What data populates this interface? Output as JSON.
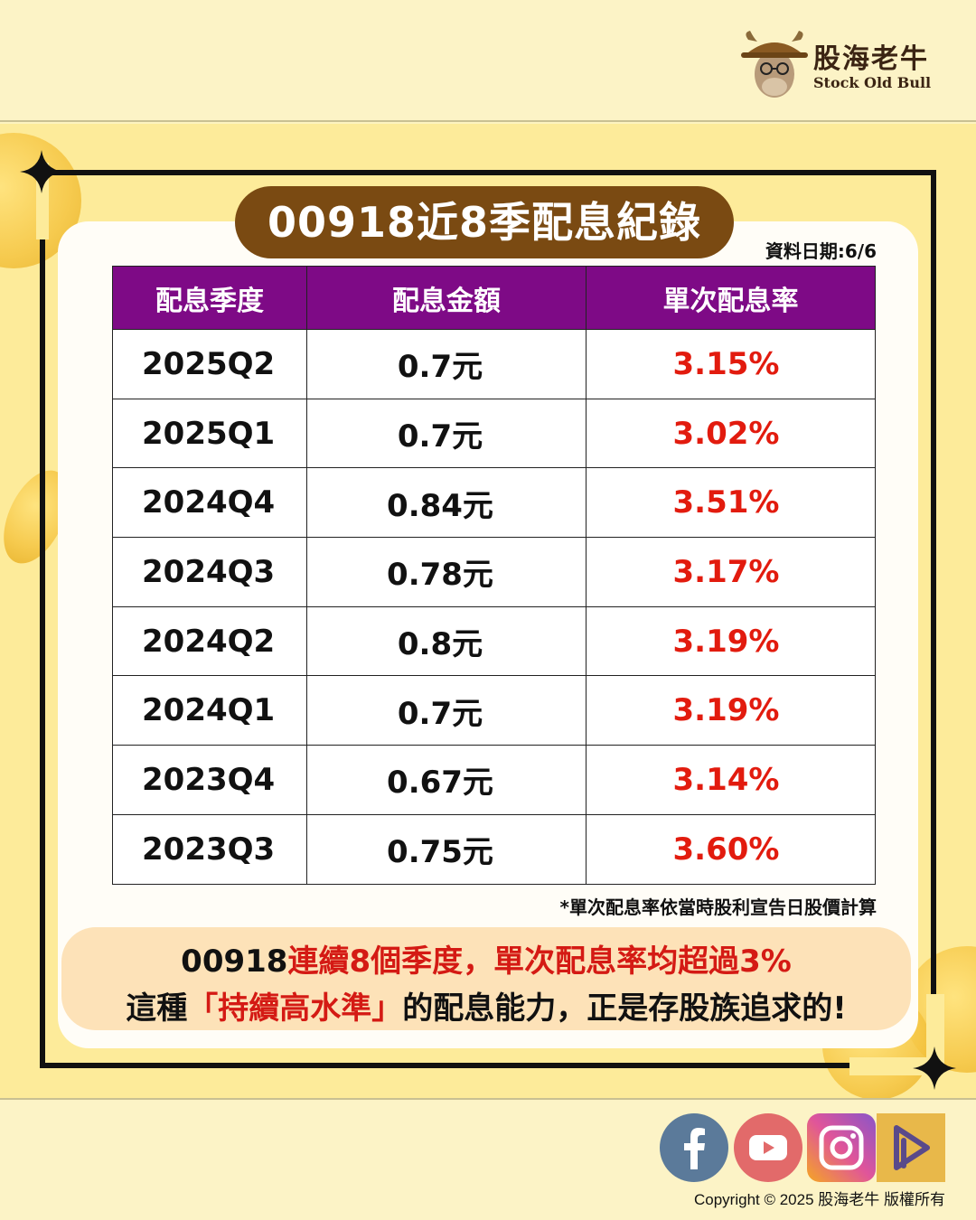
{
  "logo": {
    "name": "股海老牛",
    "subtitle": "Stock Old Bull"
  },
  "title": "00918近8季配息紀錄",
  "date_label": "資料日期:6/6",
  "table": {
    "headers": [
      "配息季度",
      "配息金額",
      "單次配息率"
    ],
    "rows": [
      {
        "quarter": "2025Q2",
        "amount": "0.7元",
        "rate": "3.15%"
      },
      {
        "quarter": "2025Q1",
        "amount": "0.7元",
        "rate": "3.02%"
      },
      {
        "quarter": "2024Q4",
        "amount": "0.84元",
        "rate": "3.51%"
      },
      {
        "quarter": "2024Q3",
        "amount": "0.78元",
        "rate": "3.17%"
      },
      {
        "quarter": "2024Q2",
        "amount": "0.8元",
        "rate": "3.19%"
      },
      {
        "quarter": "2024Q1",
        "amount": "0.7元",
        "rate": "3.19%"
      },
      {
        "quarter": "2023Q4",
        "amount": "0.67元",
        "rate": "3.14%"
      },
      {
        "quarter": "2023Q3",
        "amount": "0.75元",
        "rate": "3.60%"
      }
    ]
  },
  "note": "*單次配息率依當時股利宣告日股價計算",
  "summary": {
    "line1_a": "00918",
    "line1_b": "連續8個季度，單次配息率均超過3%",
    "line2_a": "這種",
    "line2_b": "「持續高水準」",
    "line2_c": "的配息能力，正是存股族追求的!"
  },
  "social": [
    "facebook-icon",
    "youtube-icon",
    "instagram-icon",
    "podcast-icon"
  ],
  "copyright": "Copyright © 2025 股海老牛 版權所有",
  "colors": {
    "header_purple": "#7e0a86",
    "title_brown": "#7a4a12",
    "rate_red": "#e21b0e",
    "background_yellow": "#fdeb9a"
  }
}
